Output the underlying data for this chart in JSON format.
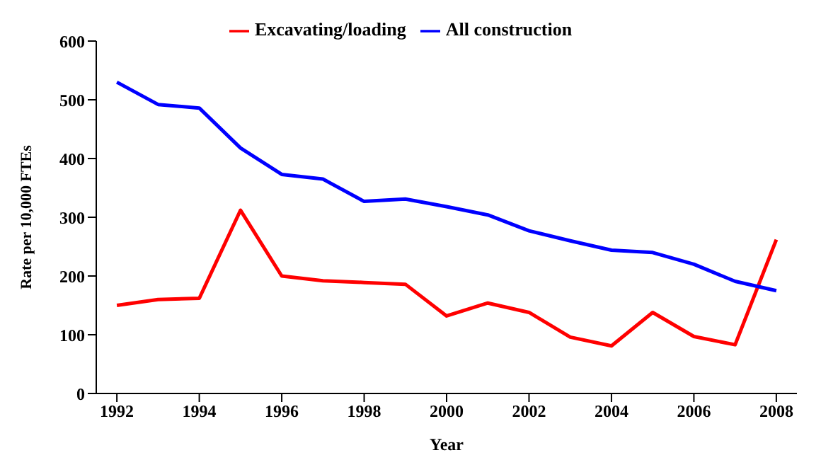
{
  "chart_data": {
    "type": "line",
    "xlabel": "Year",
    "ylabel": "Rate per 10,000 FTEs",
    "x": [
      1992,
      1993,
      1994,
      1995,
      1996,
      1997,
      1998,
      1999,
      2000,
      2001,
      2002,
      2003,
      2004,
      2005,
      2006,
      2007,
      2008
    ],
    "series": [
      {
        "name": "Excavating/loading",
        "color": "#ff0000",
        "values": [
          150,
          160,
          162,
          312,
          200,
          192,
          189,
          186,
          132,
          154,
          138,
          96,
          81,
          138,
          97,
          83,
          262
        ]
      },
      {
        "name": "All construction",
        "color": "#0000ff",
        "values": [
          530,
          492,
          486,
          418,
          373,
          365,
          327,
          331,
          318,
          304,
          277,
          260,
          244,
          240,
          220,
          191,
          175
        ]
      }
    ],
    "xlim": [
      1991.5,
      2008.5
    ],
    "xticks": [
      1992,
      1994,
      1996,
      1998,
      2000,
      2002,
      2004,
      2006,
      2008
    ],
    "ylim": [
      0,
      600
    ],
    "yticks": [
      0,
      100,
      200,
      300,
      400,
      500,
      600
    ],
    "grid": false,
    "legend": "top",
    "marker": "none",
    "line_style": "solid"
  }
}
